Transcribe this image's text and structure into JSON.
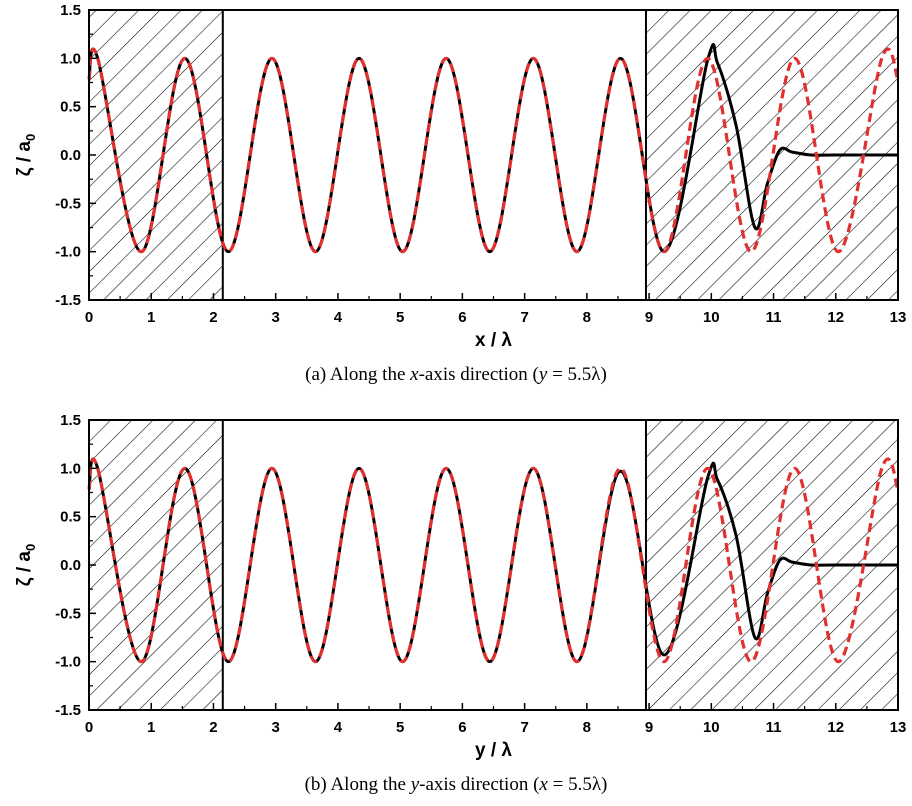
{
  "chart_data": [
    {
      "type": "line",
      "panel": "a",
      "caption": {
        "prefix": "(a) Along the ",
        "axis_var": "x",
        "middle": "-axis direction (",
        "cond_var": "y",
        "cond_rest": " = 5.5λ)"
      },
      "xlabel": "x / λ",
      "ylabel": "ζ / a₀",
      "xlim": [
        0,
        13
      ],
      "ylim": [
        -1.5,
        1.5
      ],
      "xticks": [
        "0",
        "1",
        "2",
        "3",
        "4",
        "5",
        "6",
        "7",
        "8",
        "9",
        "10",
        "11",
        "12",
        "13"
      ],
      "yticks": [
        "-1.5",
        "-1.0",
        "-0.5",
        "0.0",
        "0.5",
        "1.0",
        "1.5"
      ],
      "hatched_regions": [
        [
          0,
          2.15
        ],
        [
          8.95,
          13
        ]
      ],
      "grid": false,
      "legend": "none",
      "series": [
        {
          "style": "solid",
          "color": "#000000",
          "x": [
            0.0,
            0.14,
            0.84,
            1.54,
            2.24,
            2.94,
            3.64,
            4.34,
            5.04,
            5.74,
            6.44,
            7.14,
            7.84,
            8.54,
            9.24,
            9.94,
            10.1,
            10.4,
            10.7,
            10.9,
            11.1,
            11.3,
            11.6,
            12.0,
            13.0
          ],
          "y": [
            0.78,
            1.0,
            -1.0,
            1.0,
            -1.0,
            1.0,
            -1.0,
            1.0,
            -1.0,
            1.0,
            -1.0,
            1.0,
            -1.0,
            1.0,
            -1.0,
            0.98,
            0.95,
            0.3,
            -0.75,
            -0.3,
            0.05,
            0.03,
            0.0,
            0.0,
            0.0
          ]
        },
        {
          "style": "dashed",
          "color": "#e03030",
          "x": [
            0.0,
            0.14,
            0.84,
            1.54,
            2.24,
            2.94,
            3.64,
            4.34,
            5.04,
            5.74,
            6.44,
            7.14,
            7.84,
            8.54,
            9.24,
            9.94,
            10.64,
            11.34,
            12.04,
            12.74,
            13.0
          ],
          "y": [
            0.78,
            1.0,
            -1.0,
            1.0,
            -1.0,
            1.0,
            -1.0,
            1.0,
            -1.0,
            1.0,
            -1.0,
            1.0,
            -1.0,
            1.0,
            -1.0,
            1.0,
            -1.0,
            1.0,
            -1.0,
            1.0,
            0.78
          ]
        }
      ]
    },
    {
      "type": "line",
      "panel": "b",
      "caption": {
        "prefix": "(b) Along the ",
        "axis_var": "y",
        "middle": "-axis direction  (",
        "cond_var": "x",
        "cond_rest": " = 5.5λ)"
      },
      "xlabel": "y / λ",
      "ylabel": "ζ / a₀",
      "xlim": [
        0,
        13
      ],
      "ylim": [
        -1.5,
        1.5
      ],
      "xticks": [
        "0",
        "1",
        "2",
        "3",
        "4",
        "5",
        "6",
        "7",
        "8",
        "9",
        "10",
        "11",
        "12",
        "13"
      ],
      "yticks": [
        "-1.5",
        "-1.0",
        "-0.5",
        "0.0",
        "0.5",
        "1.0",
        "1.5"
      ],
      "hatched_regions": [
        [
          0,
          2.15
        ],
        [
          8.95,
          13
        ]
      ],
      "grid": false,
      "legend": "none",
      "series": [
        {
          "style": "solid",
          "color": "#000000",
          "x": [
            0.0,
            0.14,
            0.84,
            1.54,
            2.24,
            2.94,
            3.64,
            4.34,
            5.04,
            5.74,
            6.44,
            7.14,
            7.84,
            8.54,
            9.24,
            9.94,
            10.1,
            10.4,
            10.7,
            10.9,
            11.1,
            11.3,
            11.6,
            12.0,
            13.0
          ],
          "y": [
            0.78,
            1.0,
            -1.0,
            1.0,
            -1.0,
            1.0,
            -1.0,
            1.0,
            -1.0,
            1.0,
            -1.0,
            1.0,
            -1.0,
            0.97,
            -0.93,
            0.9,
            0.88,
            0.3,
            -0.75,
            -0.3,
            0.05,
            0.03,
            0.0,
            0.0,
            0.0
          ]
        },
        {
          "style": "dashed",
          "color": "#e03030",
          "x": [
            0.0,
            0.14,
            0.84,
            1.54,
            2.24,
            2.94,
            3.64,
            4.34,
            5.04,
            5.74,
            6.44,
            7.14,
            7.84,
            8.54,
            9.24,
            9.94,
            10.64,
            11.34,
            12.04,
            12.74,
            13.0
          ],
          "y": [
            0.78,
            1.0,
            -1.0,
            1.0,
            -1.0,
            1.0,
            -1.0,
            1.0,
            -1.0,
            1.0,
            -1.0,
            1.0,
            -1.0,
            1.0,
            -1.0,
            1.0,
            -1.0,
            1.0,
            -1.0,
            1.0,
            0.78
          ]
        }
      ]
    }
  ]
}
